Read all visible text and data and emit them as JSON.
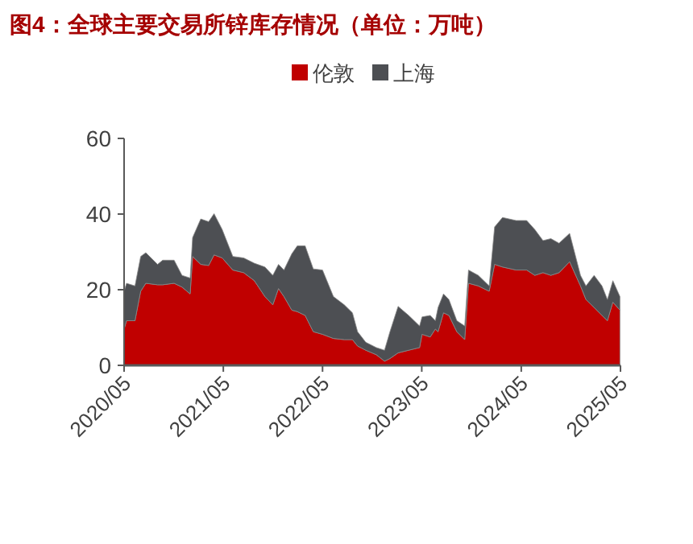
{
  "chart_data": {
    "type": "area",
    "stacked": true,
    "title": "图4：全球主要交易所锌库存情况（单位：万吨）",
    "x": [
      "2020-05-01",
      "2020-05-10",
      "2020-06-10",
      "2020-07-01",
      "2020-07-20",
      "2020-09-01",
      "2020-09-20",
      "2020-11-01",
      "2020-11-30",
      "2020-12-30",
      "2021-01-08",
      "2021-02-07",
      "2021-03-08",
      "2021-03-28",
      "2021-04-27",
      "2021-06-05",
      "2021-07-15",
      "2021-08-23",
      "2021-10-01",
      "2021-10-30",
      "2021-11-20",
      "2021-12-10",
      "2022-01-08",
      "2022-01-28",
      "2022-02-26",
      "2022-03-28",
      "2022-05-01",
      "2022-06-10",
      "2022-07-20",
      "2022-08-19",
      "2022-09-07",
      "2022-10-07",
      "2022-11-15",
      "2022-12-15",
      "2023-01-04",
      "2023-02-03",
      "2023-03-14",
      "2023-04-23",
      "2023-05-02",
      "2023-06-01",
      "2023-06-20",
      "2023-06-30",
      "2023-07-20",
      "2023-08-09",
      "2023-09-07",
      "2023-10-06",
      "2023-10-20",
      "2023-11-25",
      "2024-01-04",
      "2024-01-24",
      "2024-02-22",
      "2024-04-12",
      "2024-05-21",
      "2024-06-20",
      "2024-07-20",
      "2024-08-18",
      "2024-09-17",
      "2024-10-26",
      "2024-12-05",
      "2024-12-25",
      "2025-01-24",
      "2025-02-22",
      "2025-03-14",
      "2025-04-03",
      "2025-04-29"
    ],
    "series": [
      {
        "name": "伦敦",
        "color": "#c00000",
        "values": [
          9.6,
          11.8,
          11.8,
          19.6,
          21.7,
          21.3,
          21.3,
          21.7,
          20.7,
          18.9,
          28.8,
          26.7,
          26.4,
          29.2,
          28.4,
          25.2,
          24.5,
          22.4,
          18.2,
          16.0,
          20.3,
          18.2,
          14.6,
          14.2,
          13.2,
          8.9,
          8.2,
          7.1,
          6.8,
          6.8,
          5.1,
          4.0,
          2.8,
          1.1,
          1.8,
          3.3,
          4.0,
          4.7,
          8.2,
          7.5,
          9.6,
          8.9,
          13.9,
          13.2,
          8.9,
          6.8,
          21.7,
          21.0,
          19.6,
          26.7,
          26.0,
          25.2,
          25.2,
          23.8,
          24.5,
          23.8,
          24.5,
          27.4,
          21.0,
          17.4,
          15.3,
          13.2,
          11.8,
          16.7,
          14.6
        ]
      },
      {
        "name": "上海",
        "color": "#4d4f53",
        "values": [
          10.0,
          9.9,
          9.2,
          9.2,
          8.1,
          5.4,
          6.5,
          6.1,
          3.1,
          4.2,
          5.0,
          12.0,
          11.6,
          10.9,
          7.5,
          3.6,
          3.9,
          4.6,
          7.8,
          7.8,
          6.4,
          7.0,
          14.9,
          17.4,
          18.4,
          16.6,
          17.0,
          11.1,
          9.2,
          7.1,
          3.8,
          2.1,
          1.9,
          2.9,
          7.1,
          12.3,
          9.2,
          5.7,
          4.6,
          5.7,
          2.2,
          6.4,
          5.0,
          4.2,
          2.9,
          3.6,
          3.5,
          2.8,
          1.4,
          9.9,
          13.1,
          13.1,
          13.1,
          12.1,
          8.5,
          9.7,
          7.8,
          7.5,
          2.8,
          3.6,
          8.5,
          7.8,
          5.6,
          5.7,
          3.6
        ]
      }
    ],
    "xlim": [
      "2020-05-01",
      "2025-05-01"
    ],
    "xticks": [
      {
        "value": "2020-05-01",
        "label": "2020/05"
      },
      {
        "value": "2021-05-01",
        "label": "2021/05"
      },
      {
        "value": "2022-05-01",
        "label": "2022/05"
      },
      {
        "value": "2023-05-01",
        "label": "2023/05"
      },
      {
        "value": "2024-05-01",
        "label": "2024/05"
      },
      {
        "value": "2025-05-01",
        "label": "2025/05"
      }
    ],
    "ylim": [
      0,
      60
    ],
    "yticks": [
      0,
      20,
      40,
      60
    ],
    "legend": "top",
    "grid": false
  }
}
